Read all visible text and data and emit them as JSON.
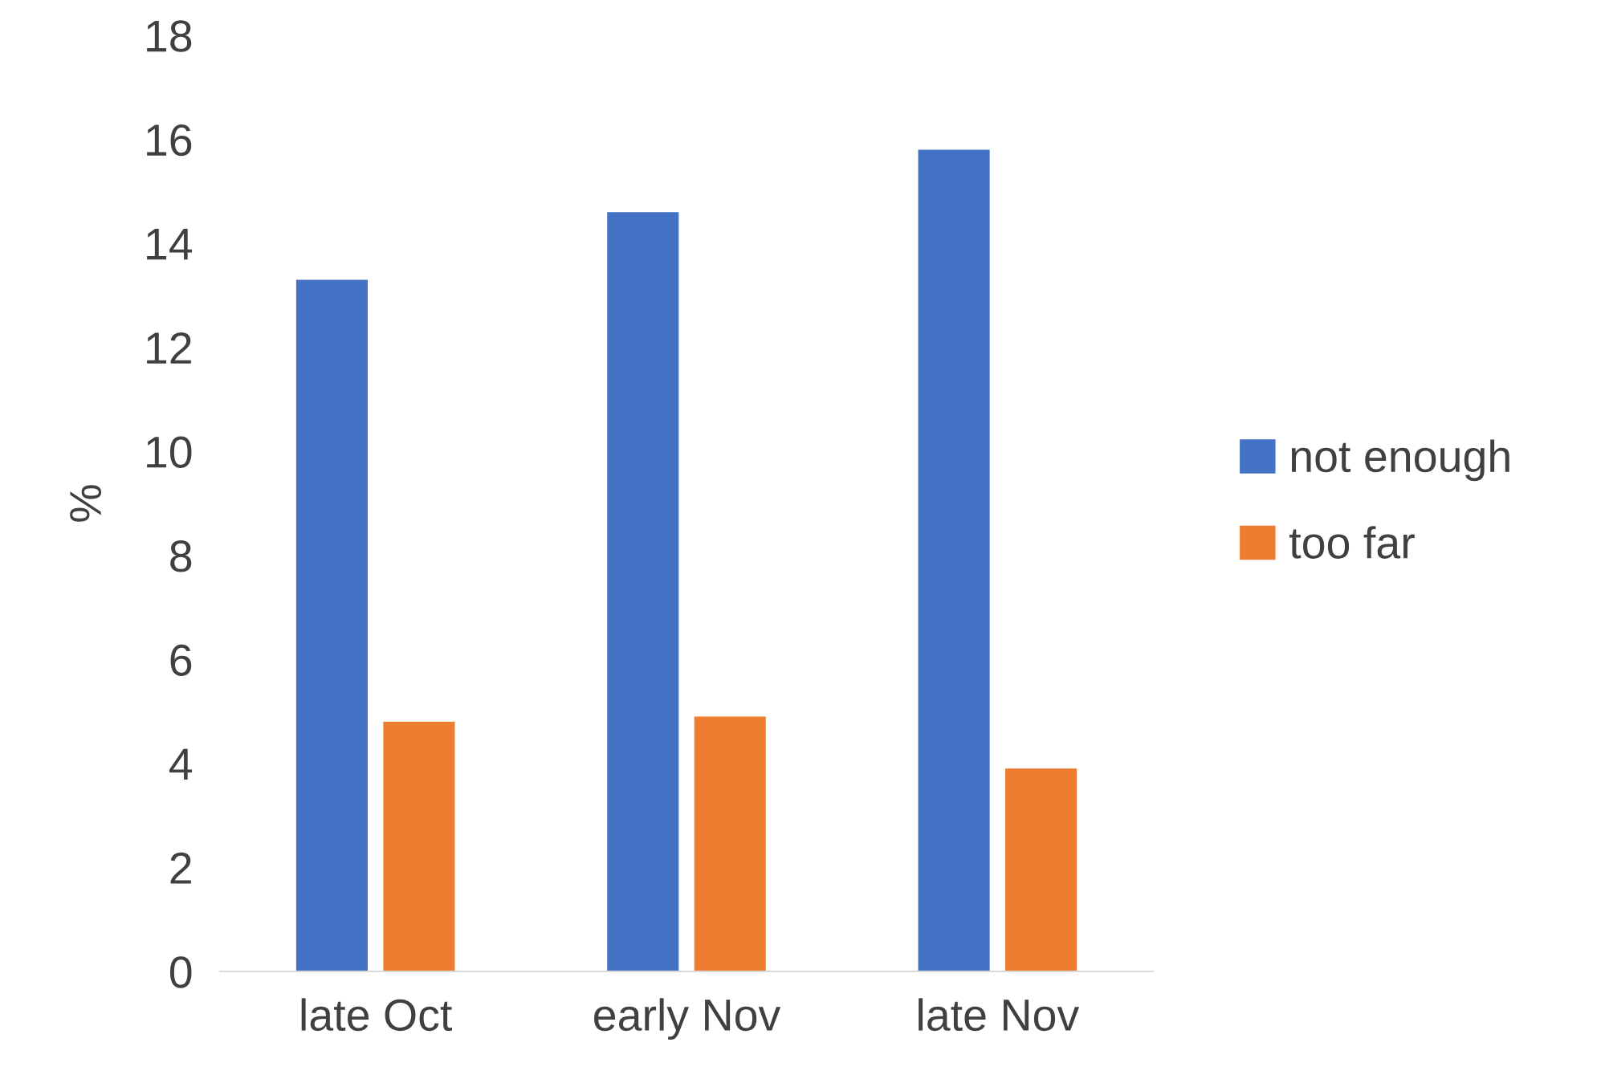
{
  "chart_data": {
    "type": "bar",
    "ylabel": "%",
    "categories": [
      "late Oct",
      "early Nov",
      "late Nov"
    ],
    "series": [
      {
        "name": "not enough",
        "color": "#4472c4",
        "values": [
          13.3,
          14.6,
          15.8
        ]
      },
      {
        "name": "too far",
        "color": "#ed7d31",
        "values": [
          4.8,
          4.9,
          3.9
        ]
      }
    ],
    "ylim": [
      0,
      18
    ],
    "yticks": [
      0,
      2,
      4,
      6,
      8,
      10,
      12,
      14,
      16,
      18
    ],
    "grid": false,
    "legend": "right"
  }
}
